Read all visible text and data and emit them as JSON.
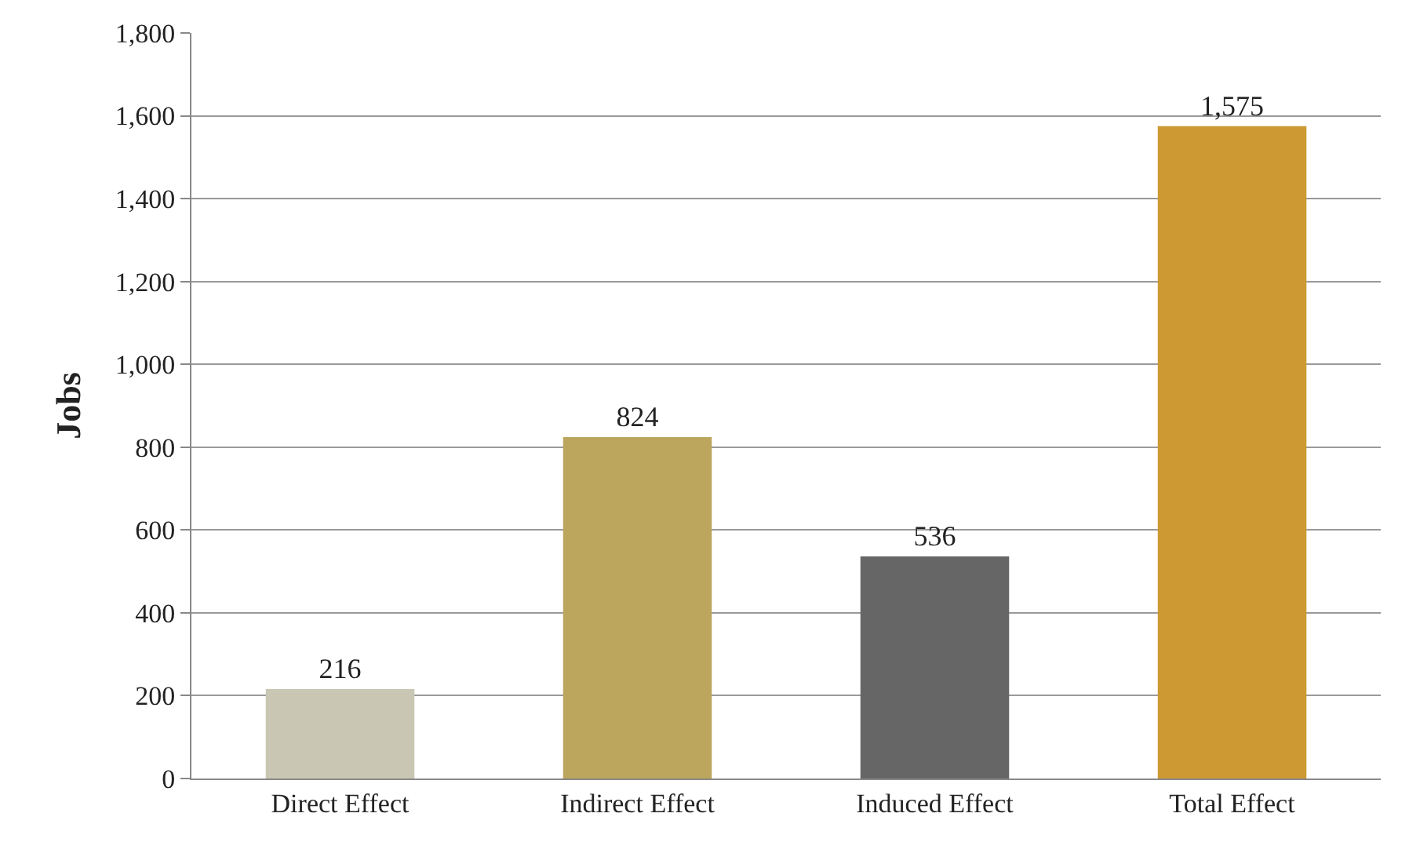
{
  "chart_data": {
    "type": "bar",
    "ylabel": "Jobs",
    "categories": [
      "Direct Effect",
      "Indirect Effect",
      "Induced Effect",
      "Total Effect"
    ],
    "values": [
      216,
      824,
      536,
      1575
    ],
    "colors": [
      "#c9c6b3",
      "#bca55c",
      "#666666",
      "#cc9933"
    ],
    "ylim": [
      0,
      1800
    ],
    "yticks": [
      0,
      200,
      400,
      600,
      800,
      {
        "value": 1000,
        "label": "1,000"
      },
      {
        "value": 1200,
        "label": "1,200"
      },
      {
        "value": 1400,
        "label": "1,400"
      },
      {
        "value": 1600,
        "label": "1,600"
      },
      {
        "value": 1800,
        "label": "1,800"
      }
    ],
    "value_labels": [
      "216",
      "824",
      "536",
      "1,575"
    ],
    "grid": "y"
  }
}
